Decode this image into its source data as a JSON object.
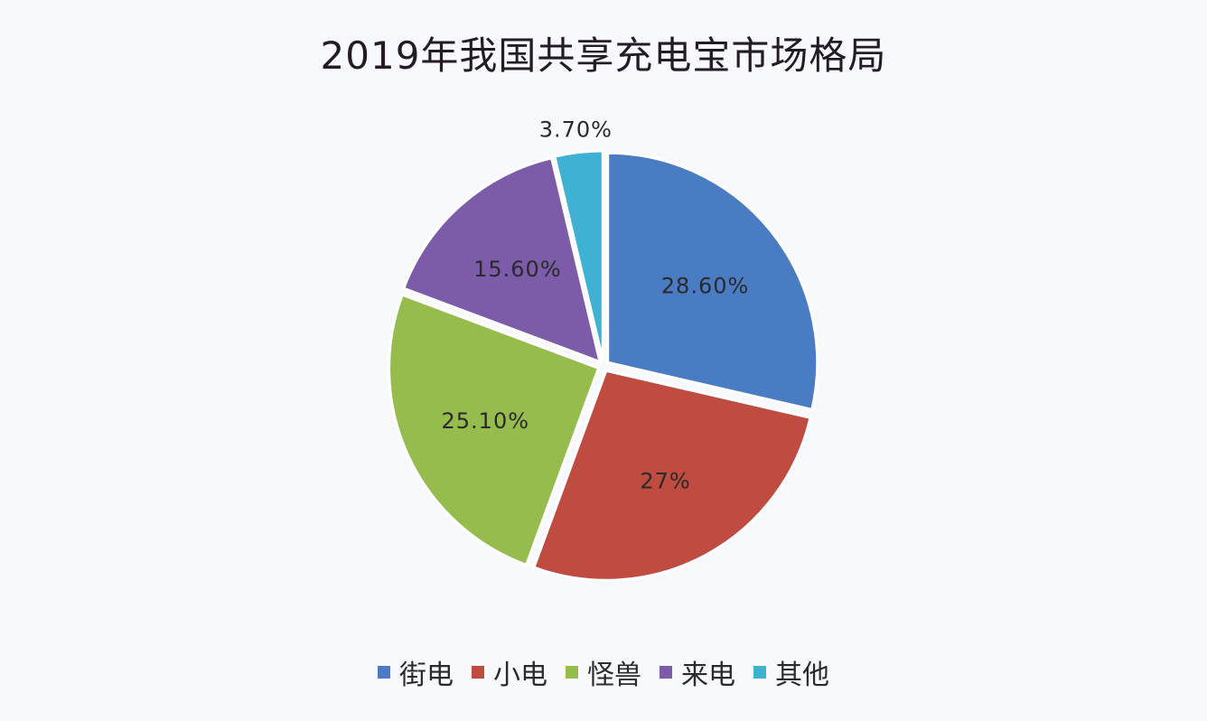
{
  "chart_data": {
    "type": "pie",
    "title": "2019年我国共享充电宝市场格局",
    "categories": [
      "街电",
      "小电",
      "怪兽",
      "来电",
      "其他"
    ],
    "values": [
      28.6,
      27,
      25.1,
      15.6,
      3.7
    ],
    "labels": [
      "28.60%",
      "27%",
      "25.10%",
      "15.60%",
      "3.70%"
    ],
    "colors": [
      "#4a7cc4",
      "#bf4b41",
      "#96bc4e",
      "#7c5ca8",
      "#3fb2d4"
    ],
    "legend_position": "bottom"
  }
}
